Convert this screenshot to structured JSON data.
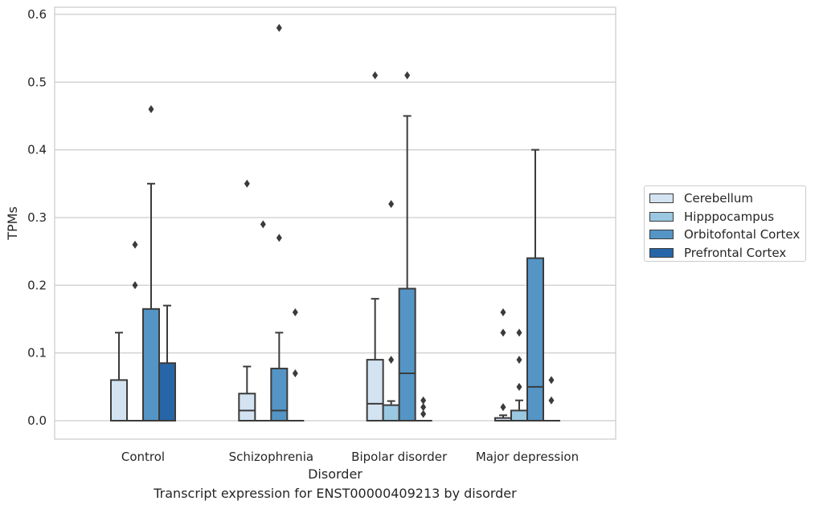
{
  "caption": "Transcript expression for ENST00000409213 by disorder",
  "colors": {
    "Cerebellum": "#d3e3f2",
    "Hipppocampus": "#9ac8e0",
    "Orbitofontal Cortex": "#5495c5",
    "Prefrontal Cortex": "#2666a8",
    "box_edge": "#3b3b3b",
    "grid": "#cccccc"
  },
  "legend": {
    "items": [
      "Cerebellum",
      "Hipppocampus",
      "Orbitofontal Cortex",
      "Prefrontal Cortex"
    ]
  },
  "chart_data": {
    "type": "box",
    "xlabel": "Disorder",
    "ylabel": "TPMs",
    "ylim": [
      -0.028,
      0.61
    ],
    "yticks": [
      "0.0",
      "0.1",
      "0.2",
      "0.3",
      "0.4",
      "0.5",
      "0.6"
    ],
    "grid": true,
    "legend_placement": "center-right, outside",
    "categories": [
      "Control",
      "Schizophrenia",
      "Bipolar disorder",
      "Major depression"
    ],
    "series": [
      {
        "name": "Cerebellum",
        "boxes": [
          {
            "q1": 0.0,
            "median": 0.0,
            "q3": 0.06,
            "whisker_low": 0.0,
            "whisker_high": 0.13,
            "outliers": []
          },
          {
            "q1": 0.0,
            "median": 0.015,
            "q3": 0.04,
            "whisker_low": 0.0,
            "whisker_high": 0.08,
            "outliers": [
              0.35
            ]
          },
          {
            "q1": 0.0,
            "median": 0.025,
            "q3": 0.09,
            "whisker_low": 0.0,
            "whisker_high": 0.18,
            "outliers": [
              0.51
            ]
          },
          {
            "q1": 0.0,
            "median": 0.0,
            "q3": 0.004,
            "whisker_low": 0.0,
            "whisker_high": 0.008,
            "outliers": [
              0.16,
              0.13,
              0.02
            ]
          }
        ]
      },
      {
        "name": "Hipppocampus",
        "boxes": [
          {
            "q1": 0.0,
            "median": 0.0,
            "q3": 0.0,
            "whisker_low": 0.0,
            "whisker_high": 0.0,
            "outliers": [
              0.26,
              0.2
            ]
          },
          {
            "q1": 0.0,
            "median": 0.0,
            "q3": 0.0,
            "whisker_low": 0.0,
            "whisker_high": 0.0,
            "outliers": [
              0.29
            ]
          },
          {
            "q1": 0.0,
            "median": 0.0,
            "q3": 0.023,
            "whisker_low": 0.0,
            "whisker_high": 0.029,
            "outliers": [
              0.32,
              0.09
            ]
          },
          {
            "q1": 0.0,
            "median": 0.0,
            "q3": 0.015,
            "whisker_low": 0.0,
            "whisker_high": 0.03,
            "outliers": [
              0.13,
              0.09,
              0.05
            ]
          }
        ]
      },
      {
        "name": "Orbitofontal Cortex",
        "boxes": [
          {
            "q1": 0.0,
            "median": 0.0,
            "q3": 0.165,
            "whisker_low": 0.0,
            "whisker_high": 0.35,
            "outliers": [
              0.46
            ]
          },
          {
            "q1": 0.0,
            "median": 0.015,
            "q3": 0.077,
            "whisker_low": 0.0,
            "whisker_high": 0.13,
            "outliers": [
              0.58,
              0.27
            ]
          },
          {
            "q1": 0.0,
            "median": 0.07,
            "q3": 0.195,
            "whisker_low": 0.0,
            "whisker_high": 0.45,
            "outliers": [
              0.51
            ]
          },
          {
            "q1": 0.0,
            "median": 0.05,
            "q3": 0.24,
            "whisker_low": 0.0,
            "whisker_high": 0.4,
            "outliers": []
          }
        ]
      },
      {
        "name": "Prefrontal Cortex",
        "boxes": [
          {
            "q1": 0.0,
            "median": 0.0,
            "q3": 0.085,
            "whisker_low": 0.0,
            "whisker_high": 0.17,
            "outliers": []
          },
          {
            "q1": 0.0,
            "median": 0.0,
            "q3": 0.0,
            "whisker_low": 0.0,
            "whisker_high": 0.0,
            "outliers": [
              0.16,
              0.07
            ]
          },
          {
            "q1": 0.0,
            "median": 0.0,
            "q3": 0.0,
            "whisker_low": 0.0,
            "whisker_high": 0.0,
            "outliers": [
              0.03,
              0.02,
              0.01
            ]
          },
          {
            "q1": 0.0,
            "median": 0.0,
            "q3": 0.0,
            "whisker_low": 0.0,
            "whisker_high": 0.0,
            "outliers": [
              0.06,
              0.03
            ]
          }
        ]
      }
    ]
  }
}
